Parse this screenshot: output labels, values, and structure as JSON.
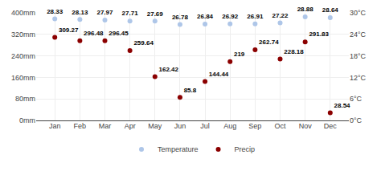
{
  "chart_data": {
    "type": "scatter",
    "categories": [
      "Jan",
      "Feb",
      "Mar",
      "Apr",
      "May",
      "Jun",
      "Jul",
      "Aug",
      "Sep",
      "Oct",
      "Nov",
      "Dec"
    ],
    "series": [
      {
        "name": "Temperature",
        "color": "#aec6e8",
        "marker": "circle",
        "axis": "y2",
        "values": [
          28.33,
          28.13,
          27.97,
          27.71,
          27.69,
          26.78,
          26.84,
          26.92,
          26.91,
          27.22,
          28.88,
          28.64
        ]
      },
      {
        "name": "Precip",
        "color": "#8B0000",
        "marker": "circle",
        "values": [
          309.27,
          296.48,
          296.45,
          259.64,
          162.42,
          85.8,
          144.44,
          219,
          262.74,
          228.18,
          291.83,
          28.54
        ]
      }
    ],
    "ylim": [
      0,
      400
    ],
    "yticks": [
      {
        "value": 0,
        "label": "0mm"
      },
      {
        "value": 80,
        "label": "80mm"
      },
      {
        "value": 160,
        "label": "160mm"
      },
      {
        "value": 240,
        "label": "240mm"
      },
      {
        "value": 320,
        "label": "320mm"
      },
      {
        "value": 400,
        "label": "400mm"
      }
    ],
    "y2lim": [
      0,
      30
    ],
    "y2ticks": [
      {
        "value": 0,
        "label": "0°C"
      },
      {
        "value": 6,
        "label": "6°C"
      },
      {
        "value": 12,
        "label": "12°C"
      },
      {
        "value": 18,
        "label": "18°C"
      },
      {
        "value": 24,
        "label": "24°C"
      },
      {
        "value": 30,
        "label": "30°C"
      }
    ],
    "grid": true,
    "legend": "bottom",
    "data_labels": true
  }
}
